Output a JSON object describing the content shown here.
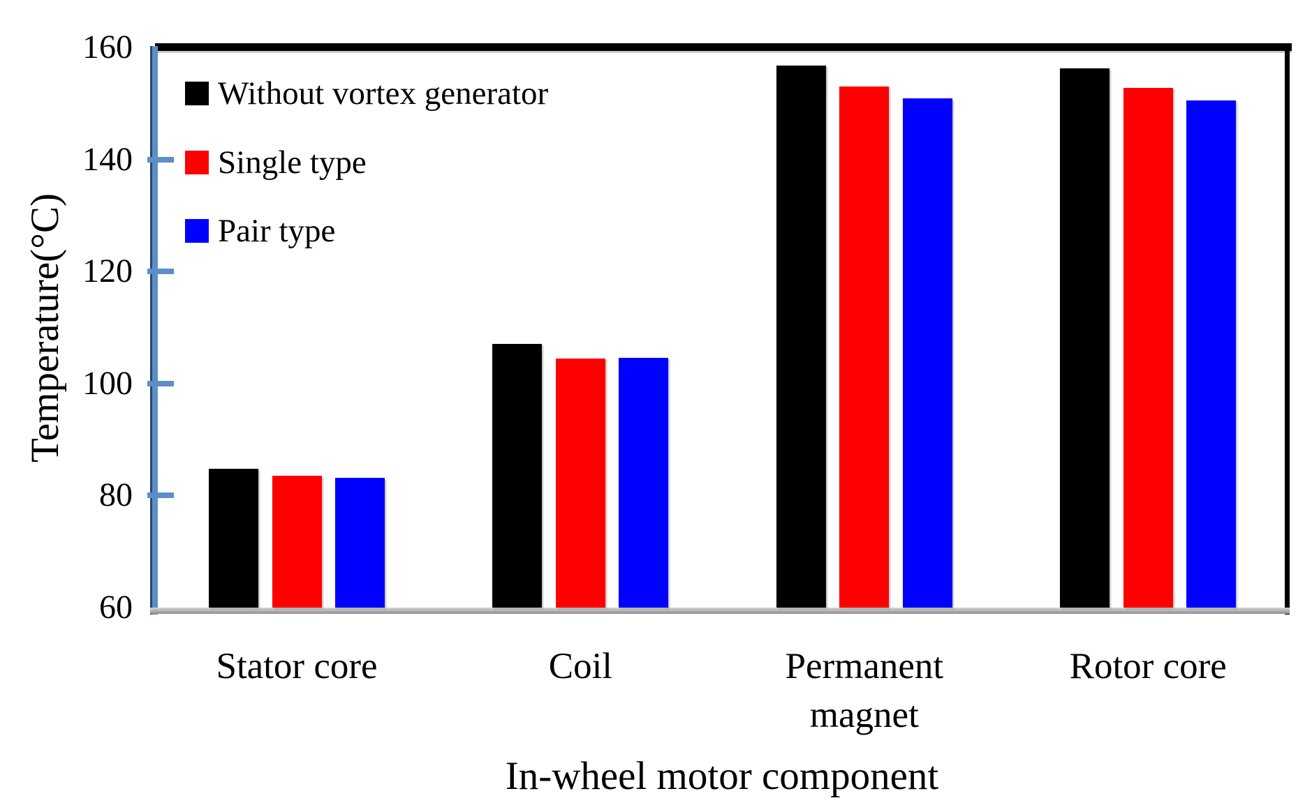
{
  "chart_data": {
    "type": "bar",
    "title": "",
    "xlabel": "In-wheel motor component",
    "ylabel": "Temperature(°C)",
    "ylim": [
      60,
      160
    ],
    "yticks": [
      60,
      80,
      100,
      120,
      140,
      160
    ],
    "grid": false,
    "legend_position": "inside-top-left",
    "categories": [
      "Stator core",
      "Coil",
      "Permanent magnet",
      "Rotor core"
    ],
    "series": [
      {
        "name": "Without vortex generator",
        "color": "#000000",
        "values": [
          84.8,
          107.1,
          156.7,
          156.3
        ]
      },
      {
        "name": "Single type",
        "color": "#ff0000",
        "values": [
          83.5,
          104.5,
          153.0,
          152.8
        ]
      },
      {
        "name": "Pair type",
        "color": "#0000ff",
        "values": [
          83.2,
          104.6,
          150.9,
          150.5
        ]
      }
    ]
  },
  "colors": {
    "axis_blue": "#5d8ec8",
    "axis_blue_dark": "#27476f",
    "baseline_gray": "#9b9b9b",
    "frame_black": "#000000",
    "background": "#ffffff"
  }
}
